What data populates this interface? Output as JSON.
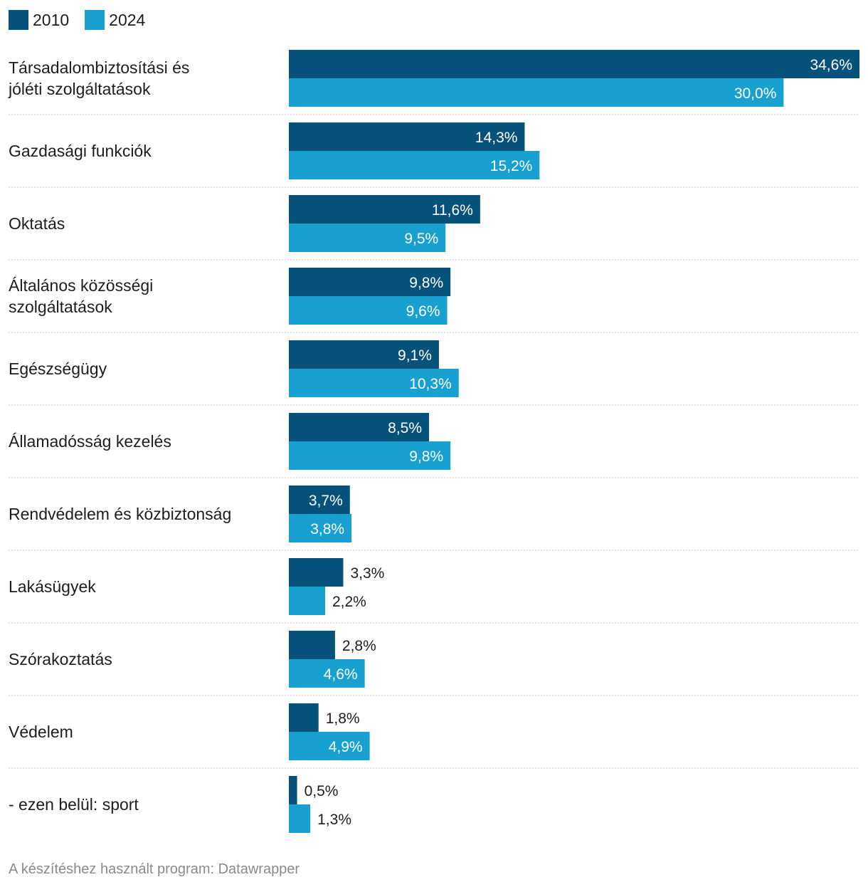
{
  "legend": [
    {
      "label": "2010",
      "color": "#07527a"
    },
    {
      "label": "2024",
      "color": "#18a1d0"
    }
  ],
  "chart_data": {
    "type": "bar",
    "orientation": "horizontal",
    "categories": [
      "Társadalombiztosítási és jóléti szolgáltatások",
      "Gazdasági funkciók",
      "Oktatás",
      "Általános közösségi szolgáltatások",
      "Egészségügy",
      "Államadósság kezelés",
      "Rendvédelem és közbiztonság",
      "Lakásügyek",
      "Szórakoztatás",
      "Védelem",
      "- ezen belül: sport"
    ],
    "series": [
      {
        "name": "2010",
        "color": "#07527a",
        "values": [
          34.6,
          14.3,
          11.6,
          9.8,
          9.1,
          8.5,
          3.7,
          3.3,
          2.8,
          1.8,
          0.5
        ],
        "labels": [
          "34,6%",
          "14,3%",
          "11,6%",
          "9,8%",
          "9,1%",
          "8,5%",
          "3,7%",
          "3,3%",
          "2,8%",
          "1,8%",
          "0,5%"
        ]
      },
      {
        "name": "2024",
        "color": "#18a1d0",
        "values": [
          30.0,
          15.2,
          9.5,
          9.6,
          10.3,
          9.8,
          3.8,
          2.2,
          4.6,
          4.9,
          1.3
        ],
        "labels": [
          "30,0%",
          "15,2%",
          "9,5%",
          "9,6%",
          "10,3%",
          "9,8%",
          "3,8%",
          "2,2%",
          "4,6%",
          "4,9%",
          "1,3%"
        ]
      }
    ],
    "xlim": [
      0,
      34.6
    ],
    "grid": false
  },
  "footer": "A készítéshez használt program: Datawrapper"
}
